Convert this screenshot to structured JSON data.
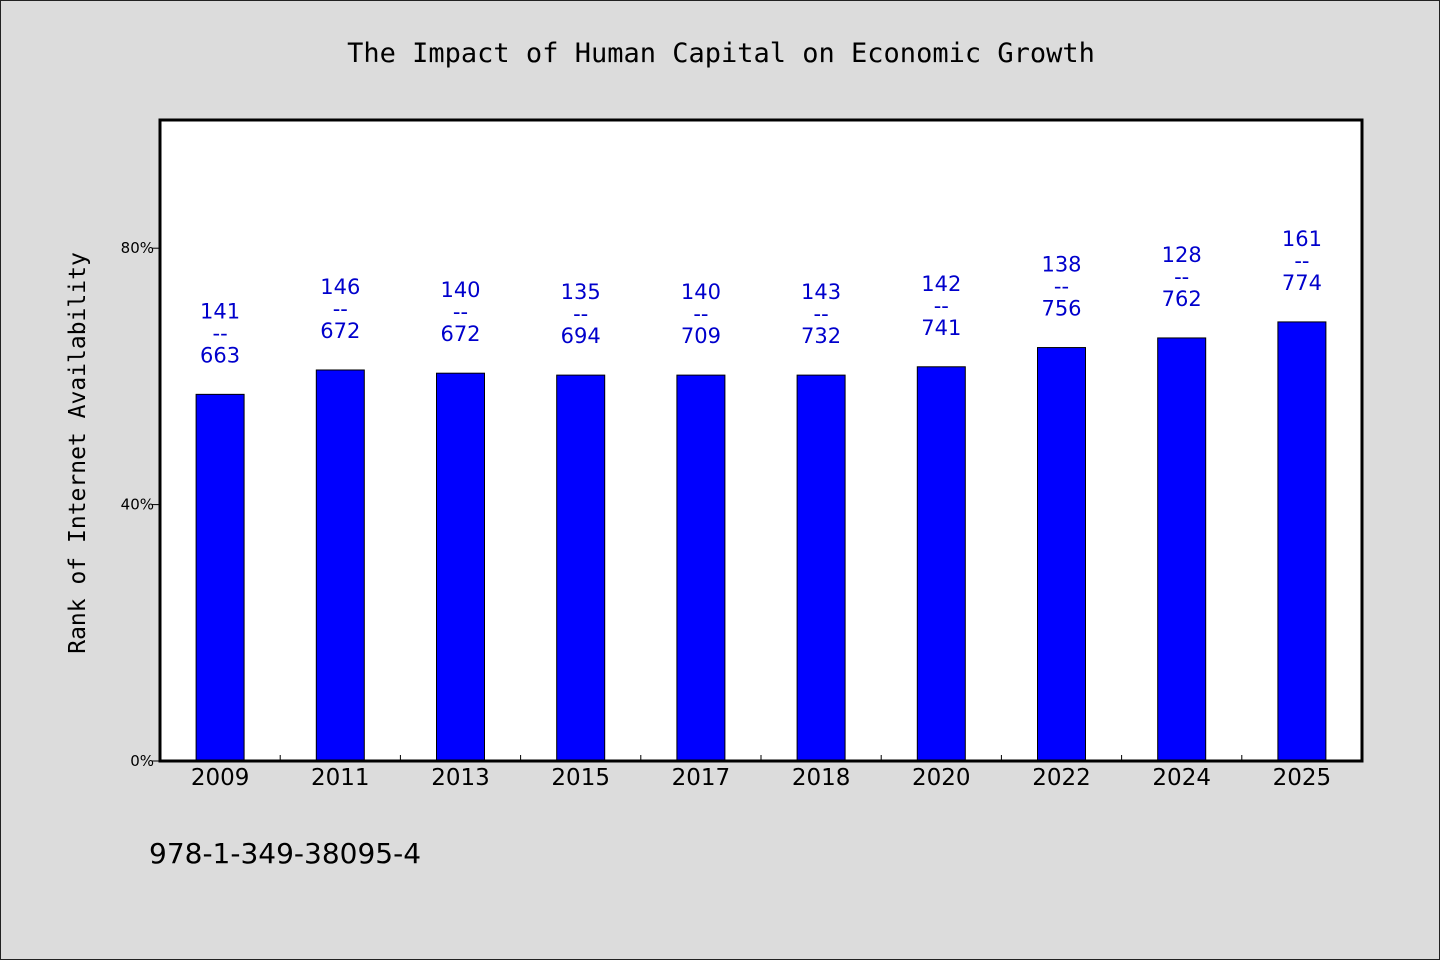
{
  "chart_data": {
    "type": "bar",
    "title": "The Impact of Human Capital on Economic Growth",
    "xlabel": "",
    "ylabel": "Rank of Internet Availability",
    "ylim": [
      0,
      100
    ],
    "yticks": [
      0,
      40,
      80
    ],
    "ytick_labels": [
      "0%",
      "40%",
      "80%"
    ],
    "categories": [
      "2009",
      "2011",
      "2013",
      "2015",
      "2017",
      "2018",
      "2020",
      "2022",
      "2024",
      "2025"
    ],
    "values": [
      57.2,
      61.0,
      60.5,
      60.2,
      60.2,
      60.2,
      61.5,
      64.5,
      66.0,
      68.5
    ],
    "label_top": [
      "141",
      "146",
      "140",
      "135",
      "140",
      "143",
      "142",
      "138",
      "128",
      "161"
    ],
    "label_sep": "--",
    "label_bottom": [
      "663",
      "672",
      "672",
      "694",
      "709",
      "732",
      "741",
      "756",
      "762",
      "774"
    ],
    "grid": false,
    "bar_color": "#0000ff",
    "label_color": "#0000cc"
  },
  "footer": {
    "isbn": "978-1-349-38095-4"
  }
}
